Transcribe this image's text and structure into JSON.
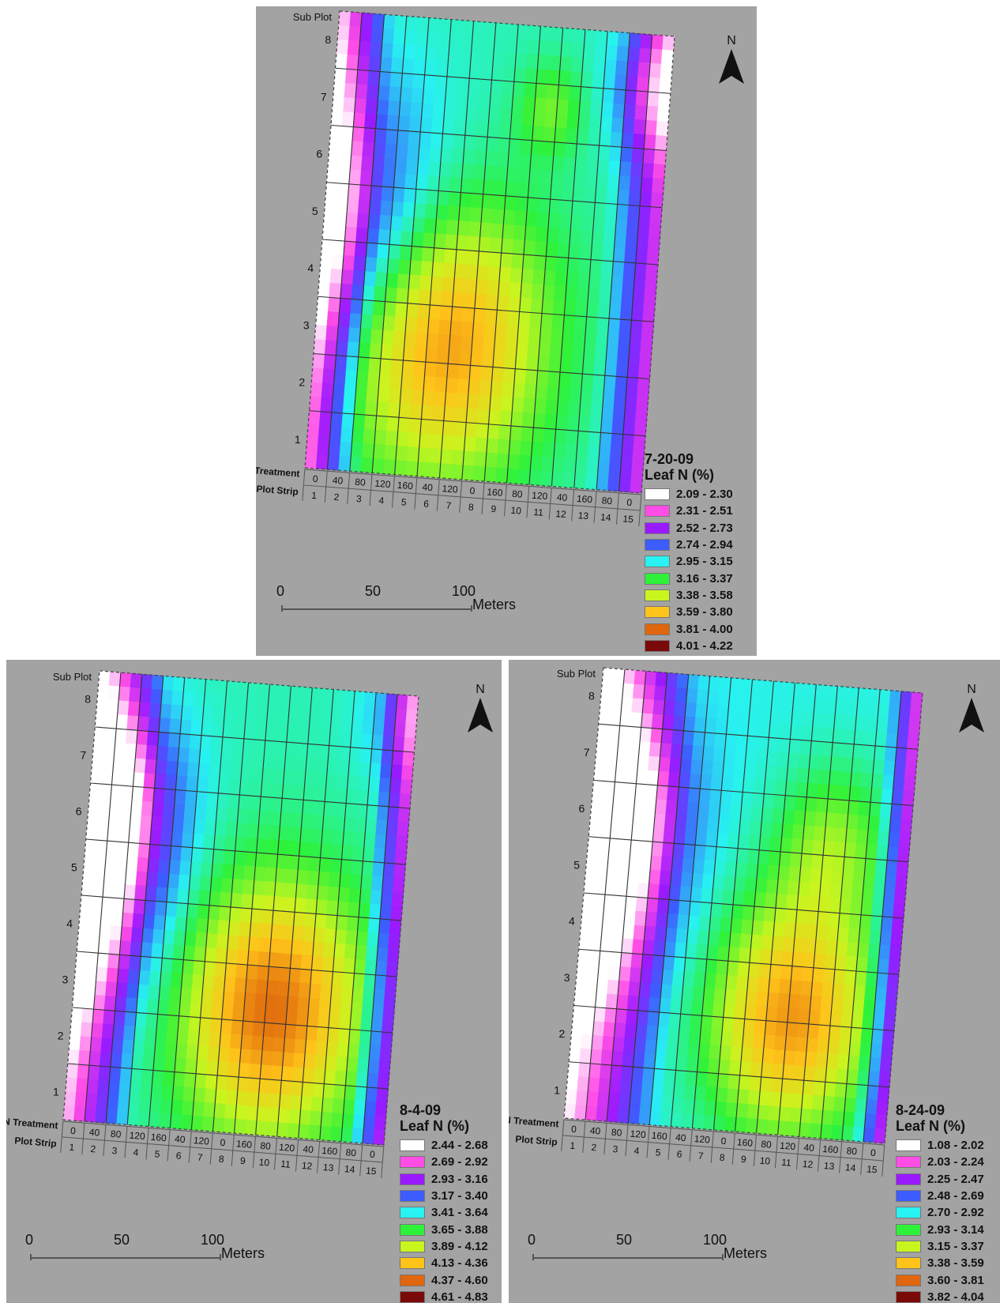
{
  "common": {
    "subplot_label": "Sub Plot",
    "treatment_label": "N Treatment",
    "strip_label": "Plot Strip",
    "north_label": "N",
    "subplots": [
      "1",
      "2",
      "3",
      "4",
      "5",
      "6",
      "7",
      "8"
    ],
    "treatments": [
      "0",
      "40",
      "80",
      "120",
      "160",
      "40",
      "120",
      "0",
      "160",
      "80",
      "120",
      "40",
      "160",
      "80",
      "0"
    ],
    "strips": [
      "1",
      "2",
      "3",
      "4",
      "5",
      "6",
      "7",
      "8",
      "9",
      "10",
      "11",
      "12",
      "13",
      "14",
      "15"
    ],
    "scale": {
      "ticks": [
        "0",
        "50",
        "100"
      ],
      "unit": "Meters"
    },
    "palette": [
      "#ffffff",
      "#ff4de6",
      "#9a1aff",
      "#3d5cff",
      "#28f2f2",
      "#2ef23a",
      "#c9f51f",
      "#ffc41a",
      "#e0670d",
      "#7a0a0a"
    ]
  },
  "maps": [
    {
      "date": "7-20-09",
      "legend_title": "Leaf N (%)",
      "classes": [
        "2.09 - 2.30",
        "2.31 - 2.51",
        "2.52 - 2.73",
        "2.74 - 2.94",
        "2.95 - 3.15",
        "3.16 - 3.37",
        "3.38 - 3.58",
        "3.59 - 3.80",
        "3.81 - 4.00",
        "4.01 - 4.22"
      ]
    },
    {
      "date": "8-4-09",
      "legend_title": "Leaf N (%)",
      "classes": [
        "2.44 - 2.68",
        "2.69 - 2.92",
        "2.93 - 3.16",
        "3.17 - 3.40",
        "3.41 - 3.64",
        "3.65 - 3.88",
        "3.89 - 4.12",
        "4.13 - 4.36",
        "4.37 - 4.60",
        "4.61 - 4.83"
      ]
    },
    {
      "date": "8-24-09",
      "legend_title": "Leaf N (%)",
      "classes": [
        "1.08 - 2.02",
        "2.03 - 2.24",
        "2.25 - 2.47",
        "2.48 - 2.69",
        "2.70 - 2.92",
        "2.93 - 3.14",
        "3.15 - 3.37",
        "3.38 - 3.59",
        "3.60 - 3.81",
        "3.82 - 4.04"
      ]
    }
  ]
}
